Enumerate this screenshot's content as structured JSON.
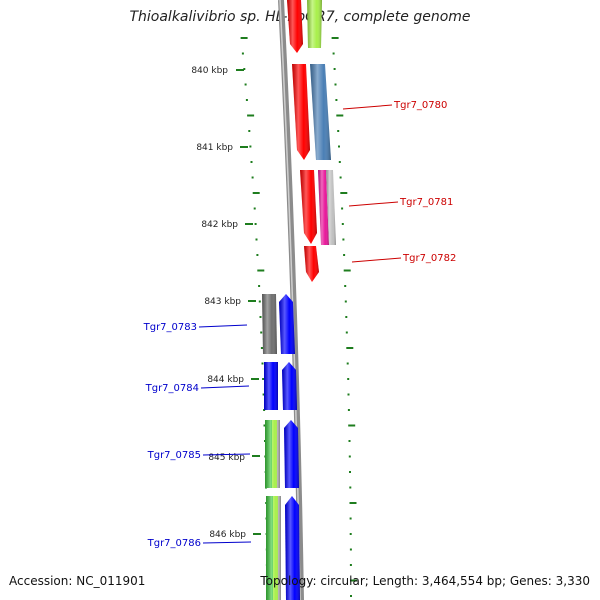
{
  "title": "Thioalkalivibrio sp. HL-EbGR7, complete genome",
  "footer": {
    "accession": "Accession: NC_011901",
    "topology": "Topology: circular; Length: 3,464,554 bp; Genes: 3,330"
  },
  "colors": {
    "backbone": "#8c8c8c",
    "tick": "#1e7d1e",
    "label_red": "#cc0000",
    "label_blue": "#0000cc",
    "gene_red": "#ff0000",
    "gene_blue": "#0000ff",
    "steel_blue": "#4a7fb5",
    "gray": "#707070",
    "magenta": "#e8179a",
    "lime": "#a8f04a",
    "green": "#3ec83e"
  },
  "ticks": [
    "840 kbp",
    "841 kbp",
    "842 kbp",
    "843 kbp",
    "844 kbp",
    "845 kbp",
    "846 kbp"
  ],
  "gene_labels": [
    {
      "id": "tgr7-0780",
      "text": "Tgr7_0780",
      "side": "right"
    },
    {
      "id": "tgr7-0781",
      "text": "Tgr7_0781",
      "side": "right"
    },
    {
      "id": "tgr7-0782",
      "text": "Tgr7_0782",
      "side": "right"
    },
    {
      "id": "tgr7-0783",
      "text": "Tgr7_0783",
      "side": "left"
    },
    {
      "id": "tgr7-0784",
      "text": "Tgr7_0784",
      "side": "left"
    },
    {
      "id": "tgr7-0785",
      "text": "Tgr7_0785",
      "side": "left"
    },
    {
      "id": "tgr7-0786",
      "text": "Tgr7_0786",
      "side": "left"
    }
  ]
}
